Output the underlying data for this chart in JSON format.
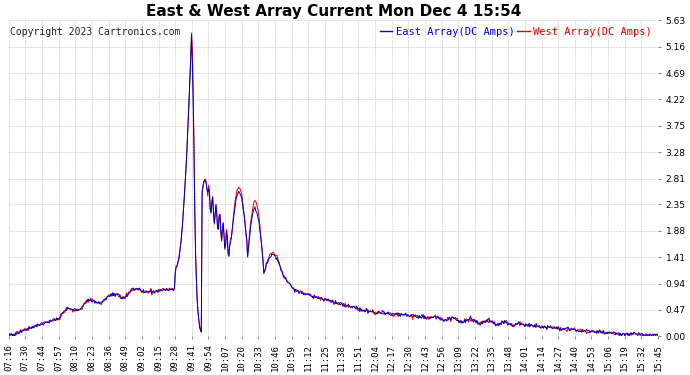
{
  "title": "East & West Array Current Mon Dec 4 15:54",
  "copyright": "Copyright 2023 Cartronics.com",
  "legend_east": "East Array(DC Amps)",
  "legend_west": "West Array(DC Amps)",
  "color_east": "#0000cc",
  "color_west": "#dd0000",
  "background_color": "#ffffff",
  "grid_color": "#bbbbbb",
  "yticks": [
    0.0,
    0.47,
    0.94,
    1.41,
    1.88,
    2.35,
    2.81,
    3.28,
    3.75,
    4.22,
    4.69,
    5.16,
    5.63
  ],
  "xtick_labels": [
    "07:16",
    "07:30",
    "07:44",
    "07:57",
    "08:10",
    "08:23",
    "08:36",
    "08:49",
    "09:02",
    "09:15",
    "09:28",
    "09:41",
    "09:54",
    "10:07",
    "10:20",
    "10:33",
    "10:46",
    "10:59",
    "11:12",
    "11:25",
    "11:38",
    "11:51",
    "12:04",
    "12:17",
    "12:30",
    "12:43",
    "12:56",
    "13:09",
    "13:22",
    "13:35",
    "13:48",
    "14:01",
    "14:14",
    "14:27",
    "14:40",
    "14:53",
    "15:06",
    "15:19",
    "15:32",
    "15:45"
  ],
  "ylim": [
    0.0,
    5.63
  ],
  "title_fontsize": 11,
  "copyright_fontsize": 7,
  "legend_fontsize": 7.5,
  "tick_fontsize": 6.5,
  "line_width": 0.7,
  "figsize": [
    6.9,
    3.75
  ],
  "dpi": 100
}
